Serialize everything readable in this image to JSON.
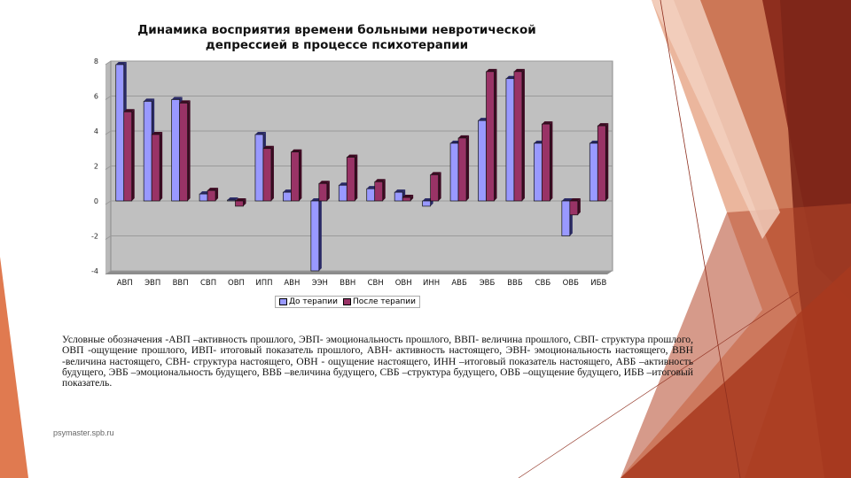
{
  "slide": {
    "title_line1": "Динамика восприятия времени больными невротической",
    "title_line2": "депрессией в процессе психотерапии",
    "legend": [
      {
        "label": "До терапии",
        "color": "#9999ff"
      },
      {
        "label": "После терапии",
        "color": "#993366"
      }
    ],
    "notes": "Условные обозначения -АВП –активность прошлого, ЭВП- эмоциональность прошлого, ВВП- величина прошлого, СВП- структура прошлого, ОВП -ощущение прошлого, ИВП- итоговый показатель прошлого, АВН- активность настоящего, ЭВН- эмоциональность настоящего, ВВН -величина настоящего, СВН- структура настоящего, ОВН - ощущение настоящего, ИНН –итоговый показатель настоящего, АВБ –активность будущего, ЭВБ –эмоциональность будущего, ВВБ –величина будущего, СВБ –структура будущего, ОВБ –ощущение будущего, ИБВ –итоговый показатель.",
    "watermark": "psymaster.spb.ru"
  },
  "chart_data": {
    "type": "bar",
    "title": "Динамика восприятия времени больными невротической депрессией в процессе психотерапии",
    "xlabel": "",
    "ylabel": "",
    "ylim": [
      -4,
      8
    ],
    "yticks": [
      8,
      6,
      4,
      2,
      0,
      -2,
      -4
    ],
    "grid": true,
    "legend_position": "bottom",
    "categories": [
      "АВП",
      "ЭВП",
      "ВВП",
      "СВП",
      "ОВП",
      "ИПП",
      "АВН",
      "ЭЭН",
      "ВВН",
      "СВН",
      "ОВН",
      "ИНН",
      "АВБ",
      "ЭВБ",
      "ВВБ",
      "СВБ",
      "ОВБ",
      "ИБВ"
    ],
    "series": [
      {
        "name": "До терапии",
        "color": "#9999ff",
        "values": [
          7.8,
          5.7,
          5.8,
          0.4,
          0.05,
          3.8,
          0.5,
          -4.0,
          0.9,
          0.7,
          0.5,
          -0.3,
          3.3,
          4.6,
          7.0,
          3.3,
          -2.0,
          3.3
        ]
      },
      {
        "name": "После терапии",
        "color": "#993366",
        "values": [
          5.1,
          3.8,
          5.6,
          0.6,
          -0.3,
          3.0,
          2.8,
          1.0,
          2.5,
          1.1,
          0.2,
          1.5,
          3.6,
          7.4,
          7.4,
          4.4,
          -0.8,
          4.3
        ]
      }
    ]
  }
}
